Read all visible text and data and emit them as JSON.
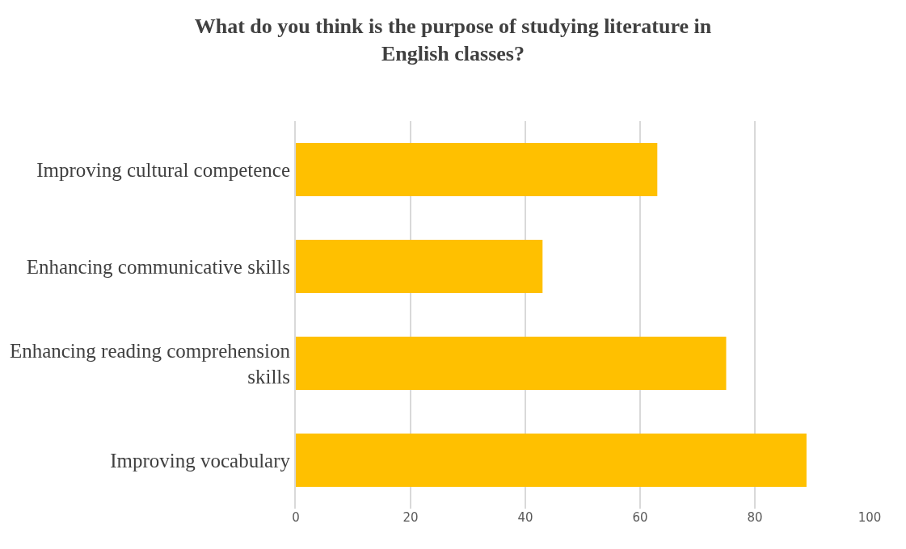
{
  "chart_data": {
    "type": "bar",
    "orientation": "horizontal",
    "title": "What do you think is the purpose of studying literature in English classes?",
    "categories": [
      "Improving cultural competence",
      "Enhancing communicative skills",
      "Enhancing reading comprehension skills",
      "Improving vocabulary"
    ],
    "values": [
      63,
      43,
      75,
      89
    ],
    "color": "#ffc000",
    "xlim": [
      0,
      100
    ],
    "xticks": [
      0,
      20,
      40,
      60,
      80,
      100
    ],
    "grid": "x"
  }
}
